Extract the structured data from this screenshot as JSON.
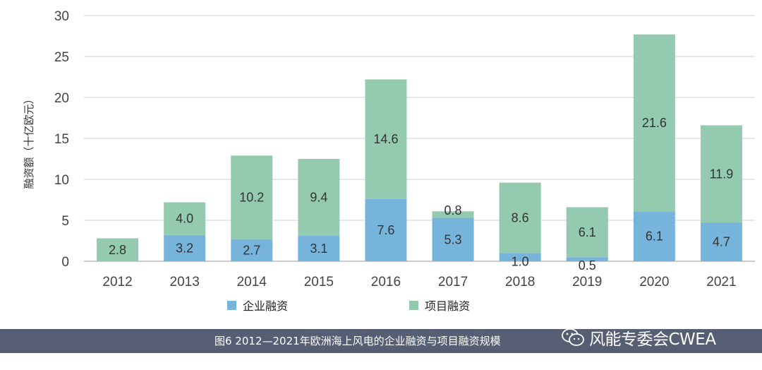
{
  "chart_data": {
    "type": "bar",
    "stacked": true,
    "categories": [
      "2012",
      "2013",
      "2014",
      "2015",
      "2016",
      "2017",
      "2018",
      "2019",
      "2020",
      "2021"
    ],
    "series": [
      {
        "name": "企业融资",
        "color": "#76b4dc",
        "values": [
          0,
          3.2,
          2.7,
          3.1,
          7.6,
          5.3,
          1.0,
          0.5,
          6.1,
          4.7
        ],
        "labels": [
          "",
          "3.2",
          "2.7",
          "3.1",
          "7.6",
          "5.3",
          "1.0",
          "0.5",
          "6.1",
          "4.7"
        ]
      },
      {
        "name": "项目融资",
        "color": "#94cbb0",
        "values": [
          2.8,
          4.0,
          10.2,
          9.4,
          14.6,
          0.8,
          8.6,
          6.1,
          21.6,
          11.9
        ],
        "labels": [
          "2.8",
          "4.0",
          "10.2",
          "9.4",
          "14.6",
          "0.8",
          "8.6",
          "6.1",
          "21.6",
          "11.9"
        ]
      }
    ],
    "ylabel": "融资额（十亿欧元）",
    "ylim": [
      0,
      30
    ],
    "yticks": [
      0,
      5,
      10,
      15,
      20,
      25,
      30
    ],
    "grid": true,
    "legend_position": "bottom"
  },
  "caption": "图6 2012—2021年欧洲海上风电的企业融资与项目融资规模",
  "watermark": {
    "text": "风能专委会CWEA",
    "icon": "wechat-icon"
  }
}
